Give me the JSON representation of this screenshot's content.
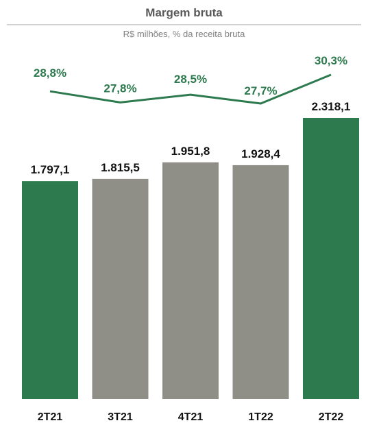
{
  "chart_data": {
    "type": "bar",
    "title": "Margem bruta",
    "subtitle": "R$ milhões, % da receita bruta",
    "categories": [
      "2T21",
      "3T21",
      "4T21",
      "1T22",
      "2T22"
    ],
    "series": [
      {
        "type": "bar",
        "values": [
          1797.1,
          1815.5,
          1951.8,
          1928.4,
          2318.1
        ],
        "value_labels": [
          "1.797,1",
          "1.815,5",
          "1.951,8",
          "1.928,4",
          "2.318,1"
        ],
        "colors": [
          "#2e7a4f",
          "#8f8f87",
          "#8f8f87",
          "#8f8f87",
          "#2e7a4f"
        ]
      },
      {
        "type": "line",
        "values": [
          28.8,
          27.8,
          28.5,
          27.7,
          30.3
        ],
        "value_labels": [
          "28,8%",
          "27,8%",
          "28,5%",
          "27,7%",
          "30,3%"
        ],
        "color": "#2e7a4f"
      }
    ],
    "ylim": [
      0,
      2350
    ],
    "grid": false,
    "legend": "none"
  },
  "colors": {
    "highlight": "#2e7a4f",
    "neutral": "#8f8f87",
    "rule": "#a6a6a6"
  }
}
